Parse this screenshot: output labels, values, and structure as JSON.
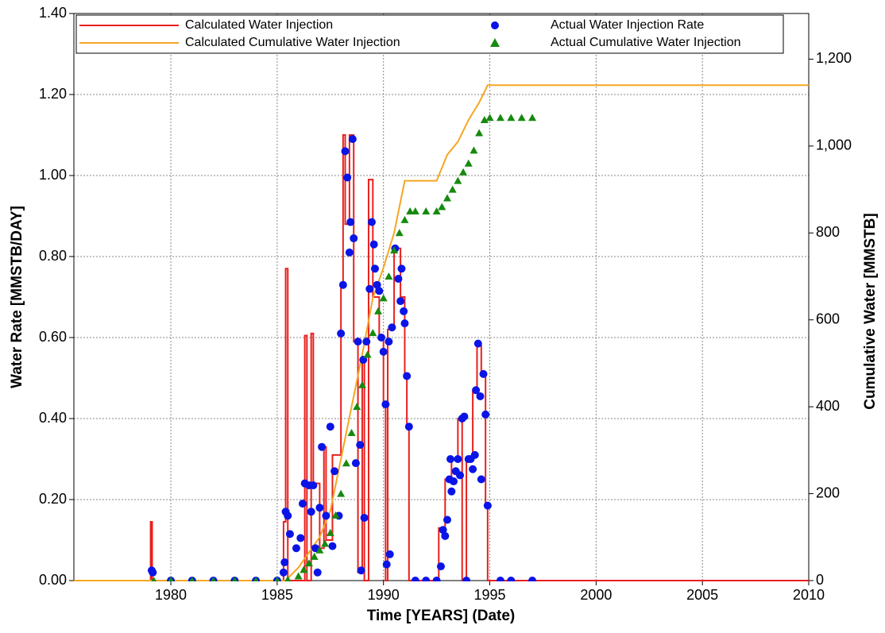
{
  "chart_data": {
    "type": "line",
    "xlabel": "Time [YEARS] (Date)",
    "ylabel": "Water Rate [MMSTB/DAY]",
    "y2label": "Cumulative Water [MMSTB]",
    "xlim": [
      1975.44,
      2010
    ],
    "xticks": [
      1980,
      1985,
      1990,
      1995,
      2000,
      2005,
      2010
    ],
    "ylim": [
      0,
      1.4
    ],
    "yticks": [
      {
        "value": 0,
        "label": "0.00"
      },
      {
        "value": 0.2,
        "label": "0.20"
      },
      {
        "value": 0.4,
        "label": "0.40"
      },
      {
        "value": 0.6,
        "label": "0.60"
      },
      {
        "value": 0.8,
        "label": "0.80"
      },
      {
        "value": 1.0,
        "label": "1.00"
      },
      {
        "value": 1.2,
        "label": "1.20"
      },
      {
        "value": 1.4,
        "label": "1.40"
      }
    ],
    "y2lim": [
      0,
      1305
    ],
    "y2ticks": [
      0,
      200,
      400,
      600,
      800,
      {
        "value": 1000,
        "label": "1,000"
      },
      {
        "value": 1200,
        "label": "1,200"
      }
    ],
    "grid": true,
    "series": [
      {
        "name": "Calculated Water Injection",
        "color": "#e8201e",
        "marker": "step",
        "axis": "y",
        "x": [
          1975.44,
          1979.05,
          1979.12,
          1985.3,
          1985.4,
          1985.5,
          1986.3,
          1986.4,
          1986.6,
          1986.7,
          1987.0,
          1987.2,
          1987.3,
          1987.6,
          1987.8,
          1988.0,
          1988.1,
          1988.2,
          1988.4,
          1988.6,
          1988.8,
          1989.0,
          1989.1,
          1989.3,
          1989.5,
          1989.8,
          1990.0,
          1990.1,
          1990.2,
          1990.5,
          1990.8,
          1991.0,
          1991.1,
          1991.2,
          1992.6,
          1992.9,
          1993.2,
          1993.5,
          1993.7,
          1993.9,
          1994.2,
          1994.4,
          1994.6,
          1994.8,
          1994.9,
          2010
        ],
        "values": [
          0,
          0.145,
          0,
          0.145,
          0.77,
          0,
          0.605,
          0,
          0.61,
          0.24,
          0.08,
          0.33,
          0.1,
          0.31,
          0.31,
          0.73,
          1.1,
          0.88,
          1.1,
          0.59,
          0.02,
          0.55,
          0,
          0.99,
          0.7,
          0.6,
          0.43,
          0,
          0.62,
          0.82,
          0.7,
          0.5,
          0.38,
          0,
          0.13,
          0.25,
          0.3,
          0.4,
          0,
          0.3,
          0.47,
          0.58,
          0.51,
          0.19,
          0,
          0
        ]
      },
      {
        "name": "Calculated Cumulative Water Injection",
        "color": "#f5a623",
        "marker": "line",
        "axis": "y2",
        "x": [
          1975.44,
          1985.4,
          1986,
          1987,
          1987.5,
          1988,
          1988.5,
          1989,
          1989.5,
          1990,
          1990.5,
          1991,
          1992.5,
          1993,
          1993.5,
          1994,
          1994.5,
          1994.9,
          2010
        ],
        "values": [
          0,
          0,
          30,
          100,
          160,
          280,
          400,
          520,
          650,
          720,
          800,
          920,
          920,
          980,
          1010,
          1060,
          1100,
          1140,
          1140
        ]
      },
      {
        "name": "Actual Water Injection Rate",
        "color": "#0a14e6",
        "marker": "circle",
        "axis": "y",
        "x": [
          1979.1,
          1979.15,
          1980,
          1981,
          1982,
          1983,
          1984,
          1985,
          1985.3,
          1985.35,
          1985.4,
          1985.5,
          1985.6,
          1985.9,
          1986.1,
          1986.2,
          1986.3,
          1986.5,
          1986.6,
          1986.7,
          1986.8,
          1986.9,
          1987.0,
          1987.1,
          1987.3,
          1987.5,
          1987.6,
          1987.7,
          1987.9,
          1988.0,
          1988.1,
          1988.2,
          1988.3,
          1988.4,
          1988.45,
          1988.55,
          1988.6,
          1988.7,
          1988.8,
          1988.9,
          1988.95,
          1989.05,
          1989.1,
          1989.2,
          1989.35,
          1989.45,
          1989.55,
          1989.6,
          1989.7,
          1989.8,
          1989.9,
          1990.0,
          1990.1,
          1990.15,
          1990.25,
          1990.3,
          1990.4,
          1990.55,
          1990.7,
          1990.8,
          1990.85,
          1990.95,
          1991.0,
          1991.1,
          1991.2,
          1991.5,
          1992,
          1992.5,
          1992.7,
          1992.8,
          1992.9,
          1993.0,
          1993.1,
          1993.15,
          1993.2,
          1993.3,
          1993.4,
          1993.5,
          1993.6,
          1993.7,
          1993.8,
          1993.9,
          1994.0,
          1994.1,
          1994.2,
          1994.3,
          1994.35,
          1994.45,
          1994.55,
          1994.6,
          1994.7,
          1994.8,
          1994.9,
          1995.5,
          1996,
          1997
        ],
        "values": [
          0.025,
          0.02,
          0,
          0,
          0,
          0,
          0,
          0,
          0.02,
          0.045,
          0.17,
          0.16,
          0.115,
          0.08,
          0.105,
          0.19,
          0.24,
          0.235,
          0.17,
          0.235,
          0.08,
          0.02,
          0.18,
          0.33,
          0.16,
          0.38,
          0.085,
          0.27,
          0.16,
          0.61,
          0.73,
          1.06,
          0.995,
          0.81,
          0.885,
          1.09,
          0.845,
          0.29,
          0.59,
          0.335,
          0.025,
          0.545,
          0.155,
          0.59,
          0.72,
          0.885,
          0.83,
          0.77,
          0.73,
          0.715,
          0.6,
          0.565,
          0.435,
          0.04,
          0.59,
          0.065,
          0.625,
          0.82,
          0.745,
          0.69,
          0.77,
          0.665,
          0.635,
          0.505,
          0.38,
          0,
          0,
          0,
          0.035,
          0.125,
          0.11,
          0.15,
          0.25,
          0.3,
          0.22,
          0.245,
          0.27,
          0.3,
          0.26,
          0.4,
          0.405,
          0,
          0.3,
          0.3,
          0.275,
          0.31,
          0.47,
          0.585,
          0.455,
          0.25,
          0.51,
          0.41,
          0.185,
          0,
          0,
          0
        ]
      },
      {
        "name": "Actual Cumulative Water Injection",
        "color": "#168a0e",
        "marker": "triangle",
        "axis": "y2",
        "x": [
          1979.2,
          1980,
          1981,
          1982,
          1983,
          1984,
          1985,
          1985.5,
          1986,
          1986.25,
          1986.5,
          1986.75,
          1987,
          1987.25,
          1987.5,
          1987.75,
          1988,
          1988.25,
          1988.5,
          1988.75,
          1989,
          1989.25,
          1989.5,
          1989.75,
          1990,
          1990.25,
          1990.5,
          1990.75,
          1991,
          1991.25,
          1991.5,
          1992,
          1992.5,
          1992.75,
          1993,
          1993.25,
          1993.5,
          1993.75,
          1994,
          1994.25,
          1994.5,
          1994.75,
          1995,
          1995.5,
          1996,
          1996.5,
          1997
        ],
        "values": [
          0,
          0,
          0,
          0,
          0,
          0,
          0,
          2,
          10,
          25,
          40,
          55,
          70,
          85,
          110,
          150,
          200,
          270,
          340,
          400,
          450,
          520,
          570,
          620,
          650,
          700,
          760,
          800,
          830,
          850,
          850,
          850,
          850,
          860,
          880,
          900,
          920,
          940,
          960,
          990,
          1030,
          1060,
          1065,
          1065,
          1065,
          1065,
          1065
        ]
      }
    ]
  }
}
